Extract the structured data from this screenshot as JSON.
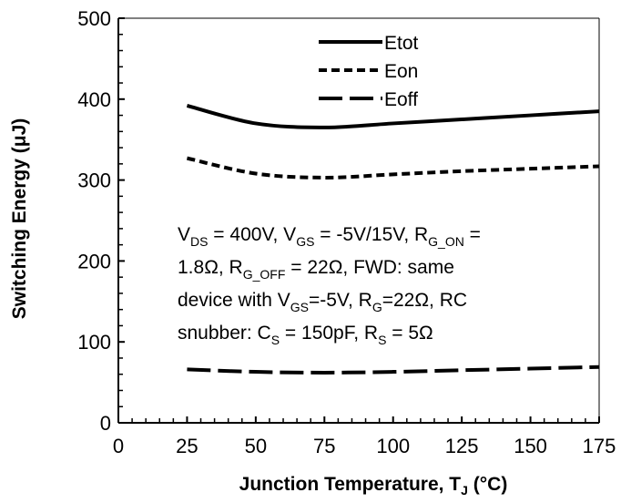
{
  "chart_data": {
    "type": "line",
    "xlabel": "Junction Temperature, T",
    "xlabel_sub": "J",
    "xlabel_unit": " (°C)",
    "ylabel": "Switching Energy (μJ)",
    "xlim": [
      0,
      175
    ],
    "ylim": [
      0,
      500
    ],
    "x_ticks": [
      "0",
      "25",
      "50",
      "75",
      "100",
      "125",
      "150",
      "175"
    ],
    "y_ticks": [
      "0",
      "100",
      "200",
      "300",
      "400",
      "500"
    ],
    "grid": false,
    "legend_position": "top-right",
    "series": [
      {
        "name": "Etot",
        "style": "solid",
        "x": [
          25,
          50,
          75,
          100,
          125,
          150,
          175
        ],
        "y": [
          392,
          370,
          365,
          370,
          375,
          380,
          385
        ]
      },
      {
        "name": "Eon",
        "style": "dashed",
        "x": [
          25,
          50,
          75,
          100,
          125,
          150,
          175
        ],
        "y": [
          327,
          308,
          303,
          307,
          311,
          314,
          317
        ]
      },
      {
        "name": "Eoff",
        "style": "longdash",
        "x": [
          25,
          50,
          75,
          100,
          125,
          150,
          175
        ],
        "y": [
          66,
          63,
          62,
          63,
          65,
          67,
          69
        ]
      }
    ],
    "annotation": {
      "line1": [
        {
          "t": "V"
        },
        {
          "t": "DS",
          "sub": true
        },
        {
          "t": " = 400V, V"
        },
        {
          "t": "GS",
          "sub": true
        },
        {
          "t": " = -5V/15V, R"
        },
        {
          "t": "G_ON",
          "sub": true
        },
        {
          "t": " ="
        }
      ],
      "line2": [
        {
          "t": "1.8Ω, R"
        },
        {
          "t": "G_OFF",
          "sub": true
        },
        {
          "t": " = 22Ω, FWD: same"
        }
      ],
      "line3": [
        {
          "t": "device with V"
        },
        {
          "t": "GS",
          "sub": true
        },
        {
          "t": "=-5V, R"
        },
        {
          "t": "G",
          "sub": true
        },
        {
          "t": "=22Ω, RC"
        }
      ],
      "line4": [
        {
          "t": "snubber: C"
        },
        {
          "t": "S",
          "sub": true
        },
        {
          "t": " = 150pF, R"
        },
        {
          "t": "S",
          "sub": true
        },
        {
          "t": " = 5Ω"
        }
      ]
    },
    "colors": {
      "line": "#000000",
      "background": "#ffffff"
    }
  }
}
